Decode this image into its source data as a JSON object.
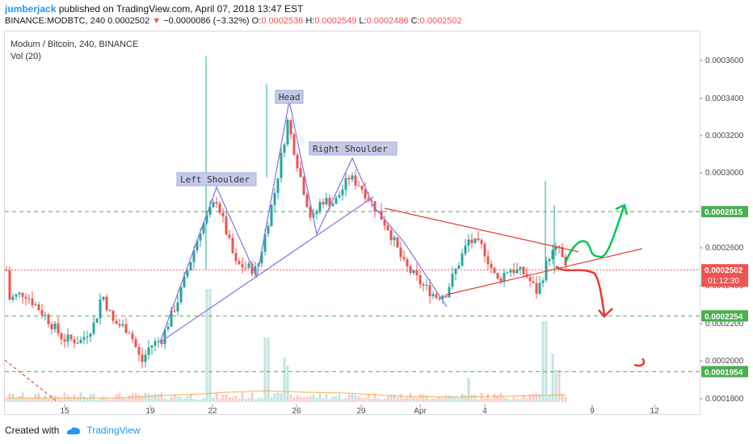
{
  "header": {
    "user": "jumberjack",
    "published": "published on TradingView.com, April 07, 2018 13:47 EST",
    "symbol": "BINANCE:MODBTC, 240",
    "last": "0.0002502",
    "change": "−0.0000086 (−3.32%)",
    "o_label": "O:",
    "o": "0.0002536",
    "h_label": "H:",
    "h": "0.0002549",
    "l_label": "L:",
    "l": "0.0002486",
    "c_label": "C:",
    "c": "0.0002502"
  },
  "chart_data": {
    "type": "candlestick",
    "title": "Modum / Bitcoin, 240, BINANCE",
    "indicator": "Vol (20)",
    "x_ticks": [
      "15",
      "19",
      "22",
      "26",
      "29",
      "Apr",
      "4",
      "9",
      "12"
    ],
    "y_ticks": [
      "0.0003600",
      "0.0003400",
      "0.0003200",
      "0.0003000",
      "0.0002600",
      "0.0002400",
      "0.0002200",
      "0.0002000",
      "0.0001800"
    ],
    "ylim": [
      0.000176,
      0.000378
    ],
    "levels": [
      {
        "label": "0.0002815",
        "value": 0.0002815,
        "color": "#4caf50",
        "style": "dashed"
      },
      {
        "label": "0.0002254",
        "value": 0.0002254,
        "color": "#4caf50",
        "style": "dashed"
      },
      {
        "label": "0.0001954",
        "value": 0.0001954,
        "color": "#4caf50",
        "style": "dashed"
      }
    ],
    "price_line": {
      "label": "0.0002502",
      "value": 0.0002502,
      "color": "#ef5350"
    },
    "countdown": "01:12:30",
    "annotations": [
      "Left Shoulder",
      "Head",
      "Right Shoulder"
    ],
    "colors": {
      "up": "#26a69a",
      "down": "#ef5350",
      "pattern": "#8c7ae6",
      "trend": "#e53935",
      "bull": "#00c853",
      "bear": "#e53935"
    }
  },
  "footer": {
    "created_with": "Created with",
    "brand": "TradingView"
  }
}
